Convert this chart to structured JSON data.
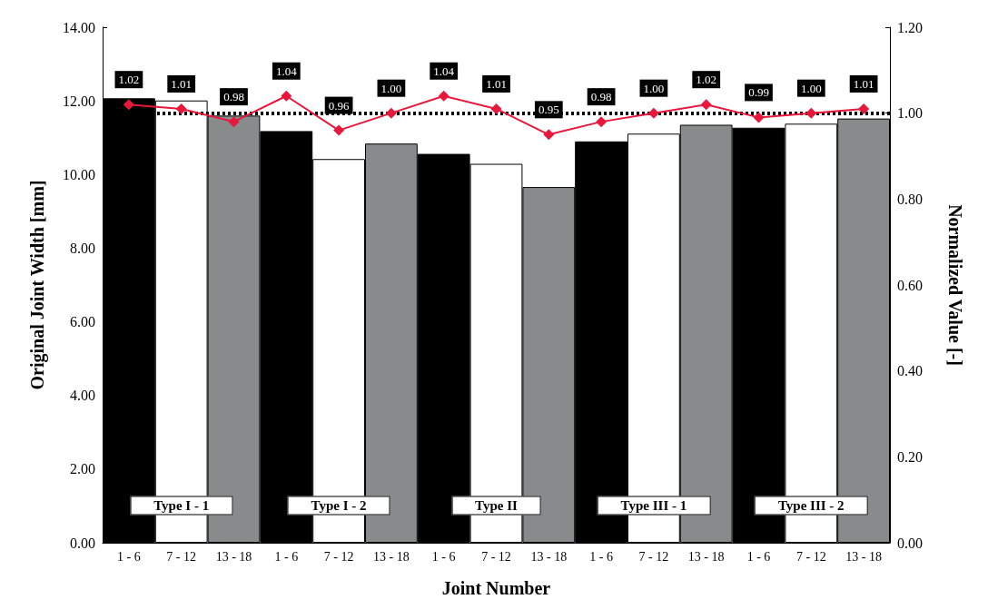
{
  "chart_data": {
    "type": "bar",
    "xlabel": "Joint Number",
    "ylabel": "Original Joint Width [mm]",
    "y2label": "Normalized Value [-]",
    "categories": [
      "1 - 6",
      "7 - 12",
      "13 - 18",
      "1 - 6",
      "7 - 12",
      "13 - 18",
      "1 - 6",
      "7 - 12",
      "13 - 18",
      "1 - 6",
      "7 - 12",
      "13 - 18",
      "1 - 6",
      "7 - 12",
      "13 - 18"
    ],
    "series": [
      {
        "colors": [
          "#000000",
          "#ffffff",
          "#888b8b",
          "#000000",
          "#ffffff",
          "#888b8b",
          "#000000",
          "#ffffff",
          "#888b8b",
          "#000000",
          "#ffffff",
          "#888b8b",
          "#000000",
          "#ffffff",
          "#888b8b"
        ],
        "values": [
          12.07,
          12.01,
          11.6,
          11.18,
          10.42,
          10.84,
          10.56,
          10.29,
          9.66,
          10.9,
          11.11,
          11.35,
          11.27,
          11.38,
          11.52
        ]
      },
      {
        "type": "line",
        "axis": "y2",
        "color": "#e8173c",
        "marker": "diamond",
        "value_labels": [
          "1.02",
          "1.01",
          "0.98",
          "1.04",
          "0.96",
          "1.00",
          "1.04",
          "1.01",
          "0.95",
          "0.98",
          "1.00",
          "1.02",
          "0.99",
          "1.00",
          "1.01"
        ],
        "values": [
          1.02,
          1.01,
          0.98,
          1.04,
          0.96,
          1.0,
          1.04,
          1.01,
          0.95,
          0.98,
          1.0,
          1.02,
          0.99,
          1.0,
          1.01
        ]
      }
    ],
    "ylim": [
      0,
      14
    ],
    "yticks": [
      {
        "value": 0,
        "label": "0.00"
      },
      {
        "value": 2,
        "label": "2.00"
      },
      {
        "value": 4,
        "label": "4.00"
      },
      {
        "value": 6,
        "label": "6.00"
      },
      {
        "value": 8,
        "label": "8.00"
      },
      {
        "value": 10,
        "label": "10.00"
      },
      {
        "value": 12,
        "label": "12.00"
      },
      {
        "value": 14,
        "label": "14.00"
      }
    ],
    "y2lim": [
      0,
      1.2
    ],
    "y2ticks": [
      {
        "value": 0,
        "label": "0.00"
      },
      {
        "value": 0.2,
        "label": "0.20"
      },
      {
        "value": 0.4,
        "label": "0.40"
      },
      {
        "value": 0.6,
        "label": "0.60"
      },
      {
        "value": 0.8,
        "label": "0.80"
      },
      {
        "value": 1,
        "label": "1.00"
      },
      {
        "value": 1.2,
        "label": "1.20"
      }
    ],
    "ref_lines": [
      {
        "axis": "y2",
        "value": 1.0,
        "color": "#000000",
        "line_style": "dotted"
      }
    ],
    "annotations": [
      "Type I - 1",
      "Type I - 2",
      "Type II",
      "Type III - 1",
      "Type III - 2"
    ],
    "grid": false
  }
}
